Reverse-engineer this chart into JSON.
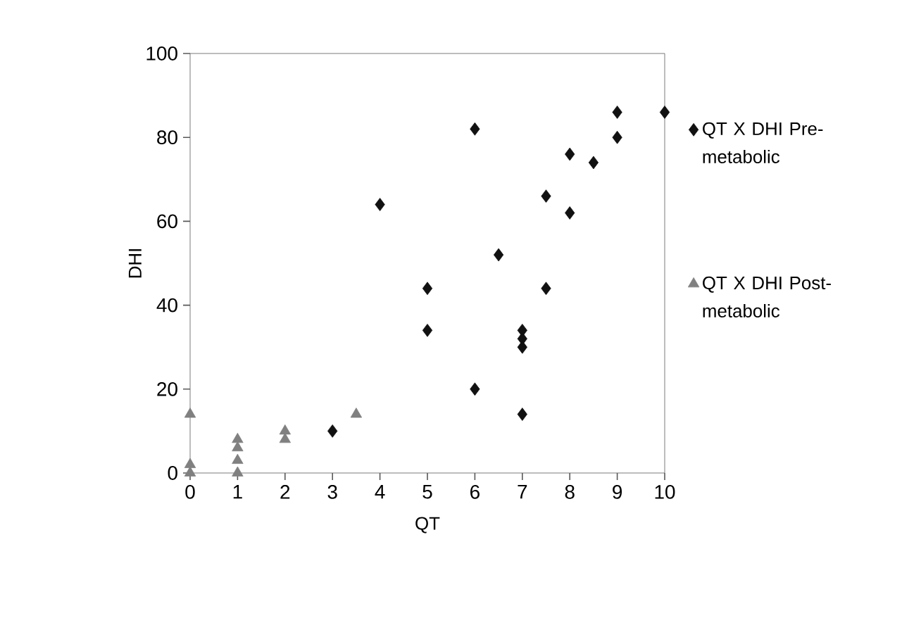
{
  "chart_data": {
    "type": "scatter",
    "xlabel": "QT",
    "ylabel": "DHI",
    "xlim": [
      0,
      10
    ],
    "ylim": [
      0,
      100
    ],
    "xticks": [
      0,
      1,
      2,
      3,
      4,
      5,
      6,
      7,
      8,
      9,
      10
    ],
    "yticks": [
      0,
      20,
      40,
      60,
      80,
      100
    ],
    "grid": false,
    "legend": "right",
    "series": [
      {
        "name": "QT X DHI Pre-metabolic",
        "color": "#111111",
        "marker": "diamond",
        "x": [
          3,
          4,
          5,
          5,
          6,
          6,
          6.5,
          7,
          7,
          7,
          7,
          7.5,
          7.5,
          8,
          8,
          8.5,
          9,
          9,
          10
        ],
        "values": [
          10,
          64,
          44,
          34,
          82,
          20,
          52,
          34,
          32,
          30,
          14,
          66,
          44,
          76,
          62,
          74,
          86,
          80,
          86
        ]
      },
      {
        "name": "QT X DHI Post-metabolic",
        "color": "#808080",
        "marker": "triangle",
        "x": [
          0,
          0,
          0,
          1,
          1,
          1,
          1,
          2,
          2,
          3.5
        ],
        "values": [
          14,
          2,
          0,
          8,
          6,
          3,
          0,
          10,
          8,
          14
        ]
      }
    ]
  }
}
